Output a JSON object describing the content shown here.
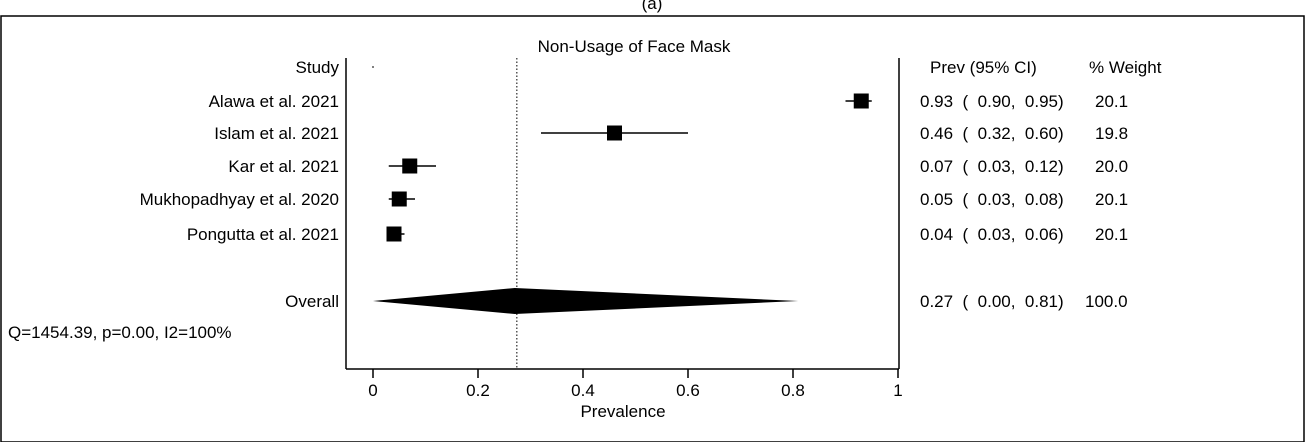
{
  "figure": {
    "panel_label": "(a)"
  },
  "chart_data": {
    "type": "forest",
    "title": "Non-Usage of Face Mask",
    "xlabel": "Prevalence",
    "xlim": [
      0,
      1
    ],
    "xticks": [
      0,
      0.2,
      0.4,
      0.6,
      0.8,
      1
    ],
    "xtick_labels": [
      "0",
      "0.2",
      "0.4",
      "0.6",
      "0.8",
      "1"
    ],
    "reference_line": 0.274,
    "headers": {
      "study": "Study",
      "estimate": "Prev (95% CI)",
      "weight": "% Weight"
    },
    "studies": [
      {
        "name": "Alawa et al. 2021",
        "prev": 0.93,
        "lower": 0.9,
        "upper": 0.95,
        "label": "0.93  (  0.90,  0.95)",
        "weight": "20.1"
      },
      {
        "name": "Islam et al. 2021",
        "prev": 0.46,
        "lower": 0.32,
        "upper": 0.6,
        "label": "0.46  (  0.32,  0.60)",
        "weight": "19.8"
      },
      {
        "name": "Kar et al. 2021",
        "prev": 0.07,
        "lower": 0.03,
        "upper": 0.12,
        "label": "0.07  (  0.03,  0.12)",
        "weight": "20.0"
      },
      {
        "name": "Mukhopadhyay et al. 2020",
        "prev": 0.05,
        "lower": 0.03,
        "upper": 0.08,
        "label": "0.05  (  0.03,  0.08)",
        "weight": "20.1"
      },
      {
        "name": "Pongutta et al. 2021",
        "prev": 0.04,
        "lower": 0.03,
        "upper": 0.06,
        "label": "0.04  (  0.03,  0.06)",
        "weight": "20.1"
      }
    ],
    "overall": {
      "name": "Overall",
      "prev": 0.27,
      "lower": 0.0,
      "upper": 0.81,
      "label": "0.27  (  0.00,  0.81)",
      "weight": "100.0"
    },
    "heterogeneity": "Q=1454.39, p=0.00, I2=100%"
  }
}
